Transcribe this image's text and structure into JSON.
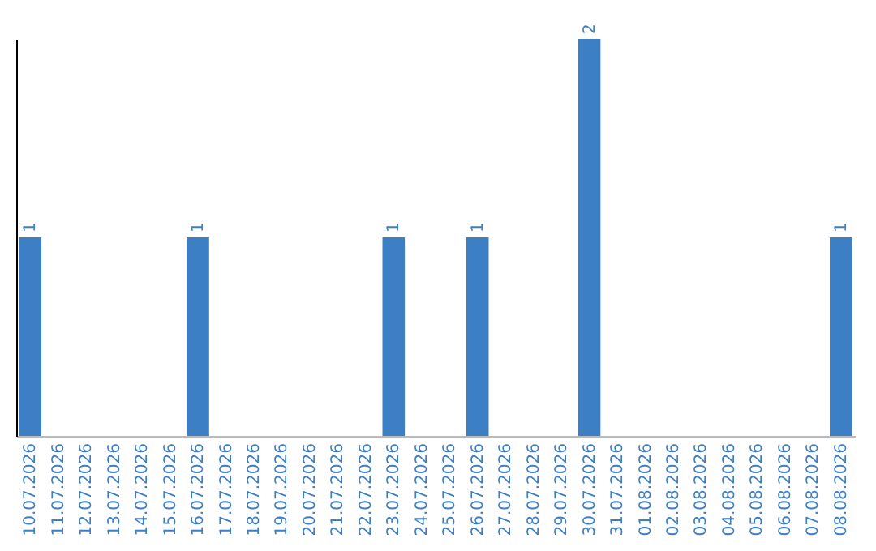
{
  "chart_data": {
    "type": "bar",
    "categories": [
      "10.07.2026",
      "11.07.2026",
      "12.07.2026",
      "13.07.2026",
      "14.07.2026",
      "15.07.2026",
      "16.07.2026",
      "17.07.2026",
      "18.07.2026",
      "19.07.2026",
      "20.07.2026",
      "21.07.2026",
      "22.07.2026",
      "23.07.2026",
      "24.07.2026",
      "25.07.2026",
      "26.07.2026",
      "27.07.2026",
      "28.07.2026",
      "29.07.2026",
      "30.07.2026",
      "31.07.2026",
      "01.08.2026",
      "02.08.2026",
      "03.08.2026",
      "04.08.2026",
      "05.08.2026",
      "06.08.2026",
      "07.08.2026",
      "08.08.2026"
    ],
    "series": [
      {
        "color": "#3d7fc4",
        "values": [
          1,
          0,
          0,
          0,
          0,
          0,
          1,
          0,
          0,
          0,
          0,
          0,
          0,
          1,
          0,
          0,
          1,
          0,
          0,
          0,
          2,
          0,
          0,
          0,
          0,
          0,
          0,
          0,
          0,
          1
        ],
        "value_labels": [
          "1",
          null,
          null,
          null,
          null,
          null,
          "1",
          null,
          null,
          null,
          null,
          null,
          null,
          "1",
          null,
          null,
          "1",
          null,
          null,
          null,
          "2",
          null,
          null,
          null,
          null,
          null,
          null,
          null,
          null,
          "1"
        ]
      }
    ],
    "grid": false,
    "tick_labels": "x"
  }
}
